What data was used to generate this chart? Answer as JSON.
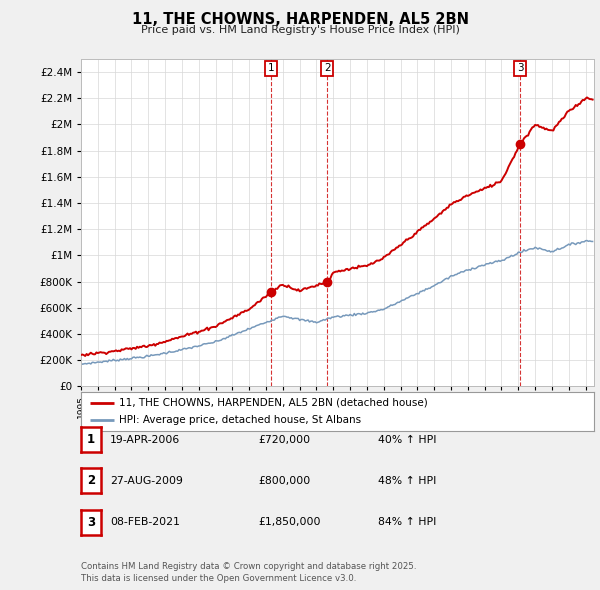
{
  "title": "11, THE CHOWNS, HARPENDEN, AL5 2BN",
  "subtitle": "Price paid vs. HM Land Registry's House Price Index (HPI)",
  "red_label": "11, THE CHOWNS, HARPENDEN, AL5 2BN (detached house)",
  "blue_label": "HPI: Average price, detached house, St Albans",
  "footer": "Contains HM Land Registry data © Crown copyright and database right 2025.\nThis data is licensed under the Open Government Licence v3.0.",
  "transactions": [
    {
      "num": 1,
      "date": "19-APR-2006",
      "price": "£720,000",
      "pct": "40% ↑ HPI",
      "year": 2006.3
    },
    {
      "num": 2,
      "date": "27-AUG-2009",
      "price": "£800,000",
      "pct": "48% ↑ HPI",
      "year": 2009.65
    },
    {
      "num": 3,
      "date": "08-FEB-2021",
      "price": "£1,850,000",
      "pct": "84% ↑ HPI",
      "year": 2021.1
    }
  ],
  "ylim": [
    0,
    2500000
  ],
  "yticks": [
    0,
    200000,
    400000,
    600000,
    800000,
    1000000,
    1200000,
    1400000,
    1600000,
    1800000,
    2000000,
    2200000,
    2400000
  ],
  "xlim_start": 1995,
  "xlim_end": 2025.5,
  "bg_color": "#f0f0f0",
  "plot_bg": "#ffffff",
  "red_color": "#cc0000",
  "blue_color": "#7799bb",
  "hpi_anchors_x": [
    1995,
    1997,
    1999,
    2001,
    2003,
    2005,
    2006,
    2007,
    2008,
    2009,
    2010,
    2011,
    2012,
    2013,
    2014,
    2015,
    2016,
    2017,
    2018,
    2019,
    2020,
    2021,
    2022,
    2023,
    2024,
    2025
  ],
  "hpi_anchors_y": [
    170000,
    200000,
    230000,
    280000,
    340000,
    440000,
    490000,
    540000,
    510000,
    490000,
    530000,
    545000,
    560000,
    590000,
    650000,
    710000,
    770000,
    840000,
    890000,
    930000,
    960000,
    1020000,
    1060000,
    1030000,
    1080000,
    1110000
  ],
  "red_anchors_x": [
    1995,
    1997,
    1999,
    2001,
    2003,
    2005,
    2006.3,
    2007,
    2008,
    2009.65,
    2010,
    2011,
    2012,
    2013,
    2014,
    2015,
    2016,
    2017,
    2018,
    2019,
    2020,
    2021.1,
    2022,
    2023,
    2024,
    2025
  ],
  "red_anchors_y": [
    240000,
    270000,
    310000,
    380000,
    460000,
    590000,
    720000,
    780000,
    730000,
    800000,
    870000,
    900000,
    920000,
    980000,
    1080000,
    1180000,
    1280000,
    1390000,
    1460000,
    1510000,
    1570000,
    1850000,
    2000000,
    1950000,
    2100000,
    2200000
  ]
}
